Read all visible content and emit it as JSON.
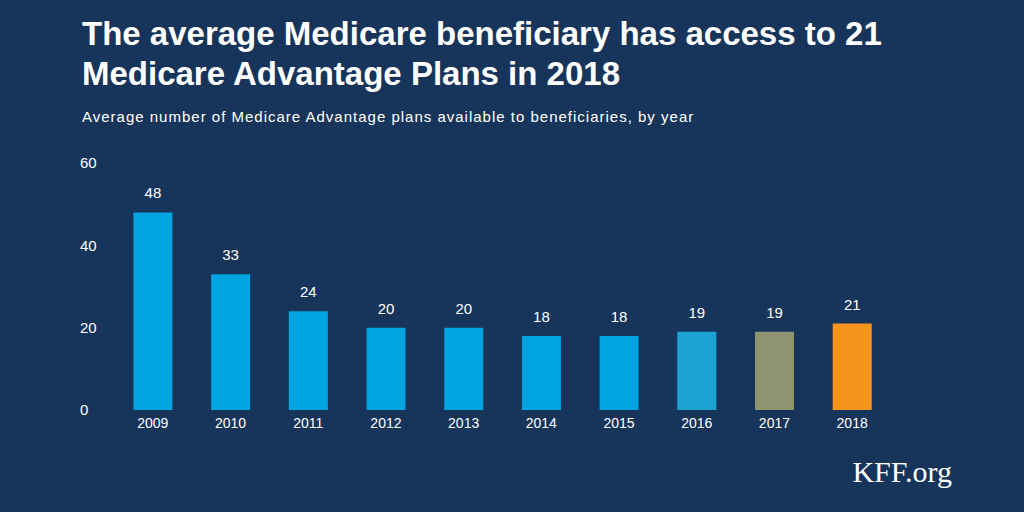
{
  "chart_data": {
    "type": "bar",
    "title": "The average Medicare beneficiary has access to 21 Medicare Advantage Plans in 2018",
    "subtitle": "Average number of Medicare Advantage plans available to beneficiaries, by year",
    "annotation": "KFF.org",
    "categories": [
      "2009",
      "2010",
      "2011",
      "2012",
      "2013",
      "2014",
      "2015",
      "2016",
      "2017",
      "2018"
    ],
    "values": [
      48,
      33,
      24,
      20,
      20,
      18,
      18,
      19,
      19,
      21
    ],
    "colors": [
      "#00a4e0",
      "#00a4e0",
      "#00a4e0",
      "#00a4e0",
      "#00a4e0",
      "#00a4e0",
      "#00a4e0",
      "#1da3d1",
      "#8c9470",
      "#f7941d"
    ],
    "ylim": [
      0,
      60
    ],
    "yticks": [
      0,
      20,
      40,
      60
    ],
    "grid": false,
    "data_labels": true
  }
}
